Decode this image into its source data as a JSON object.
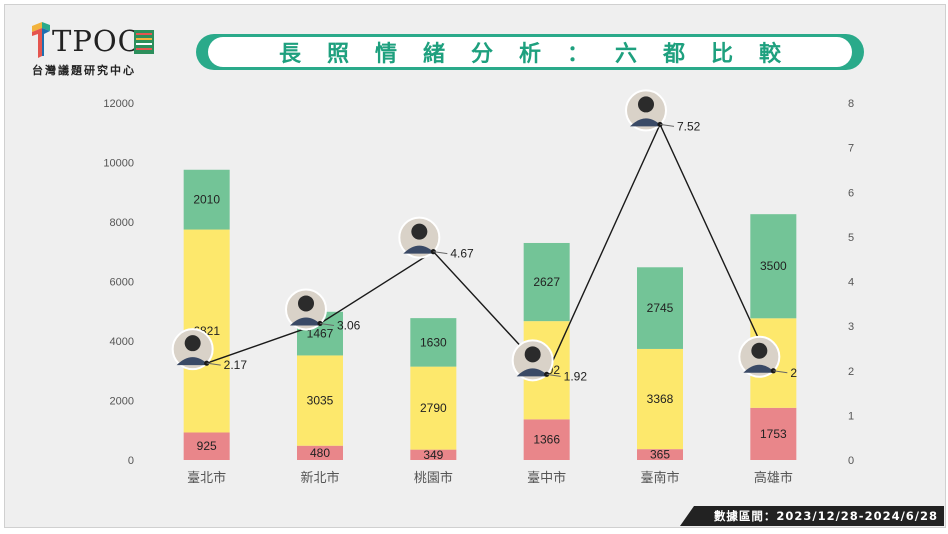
{
  "logo": {
    "text": "TPOC",
    "subtitle": "台灣議題研究中心"
  },
  "title": "長照情緒分析：六都比較",
  "footer": "數據區間：2023/12/28-2024/6/28",
  "colors": {
    "banner": "#2aaa8a",
    "title_text": "#1ea07e",
    "bar_bottom": "#e9868a",
    "bar_middle": "#fde86c",
    "bar_top": "#73c497",
    "line": "#1a1a1a"
  },
  "chart_data": {
    "type": "bar",
    "categories": [
      "臺北市",
      "新北市",
      "桃園市",
      "臺中市",
      "臺南市",
      "高雄市"
    ],
    "series": [
      {
        "values": [
          925,
          480,
          349,
          1366,
          365,
          1753
        ]
      },
      {
        "values": [
          6821,
          3035,
          2790,
          3302,
          3368,
          3010
        ]
      },
      {
        "values": [
          2010,
          1467,
          1630,
          2627,
          2745,
          3500
        ]
      }
    ],
    "middle_labels": [
      "6821",
      "3035",
      "2790",
      "3302",
      "3368",
      ""
    ],
    "stacked": true,
    "ylim": [
      0,
      12000
    ],
    "yticks": [
      0,
      2000,
      4000,
      6000,
      8000,
      10000,
      12000
    ],
    "line_series": {
      "type": "line",
      "axis": "right",
      "values": [
        2.17,
        3.06,
        4.67,
        1.92,
        7.52,
        2
      ],
      "labels": [
        "2.17",
        "3.06",
        "4.67",
        "1.92",
        "7.52",
        "2"
      ]
    },
    "y2lim": [
      0,
      8
    ],
    "y2ticks": [
      0,
      1,
      2,
      3,
      4,
      5,
      6,
      7,
      8
    ],
    "grid": false,
    "legend": "none"
  }
}
